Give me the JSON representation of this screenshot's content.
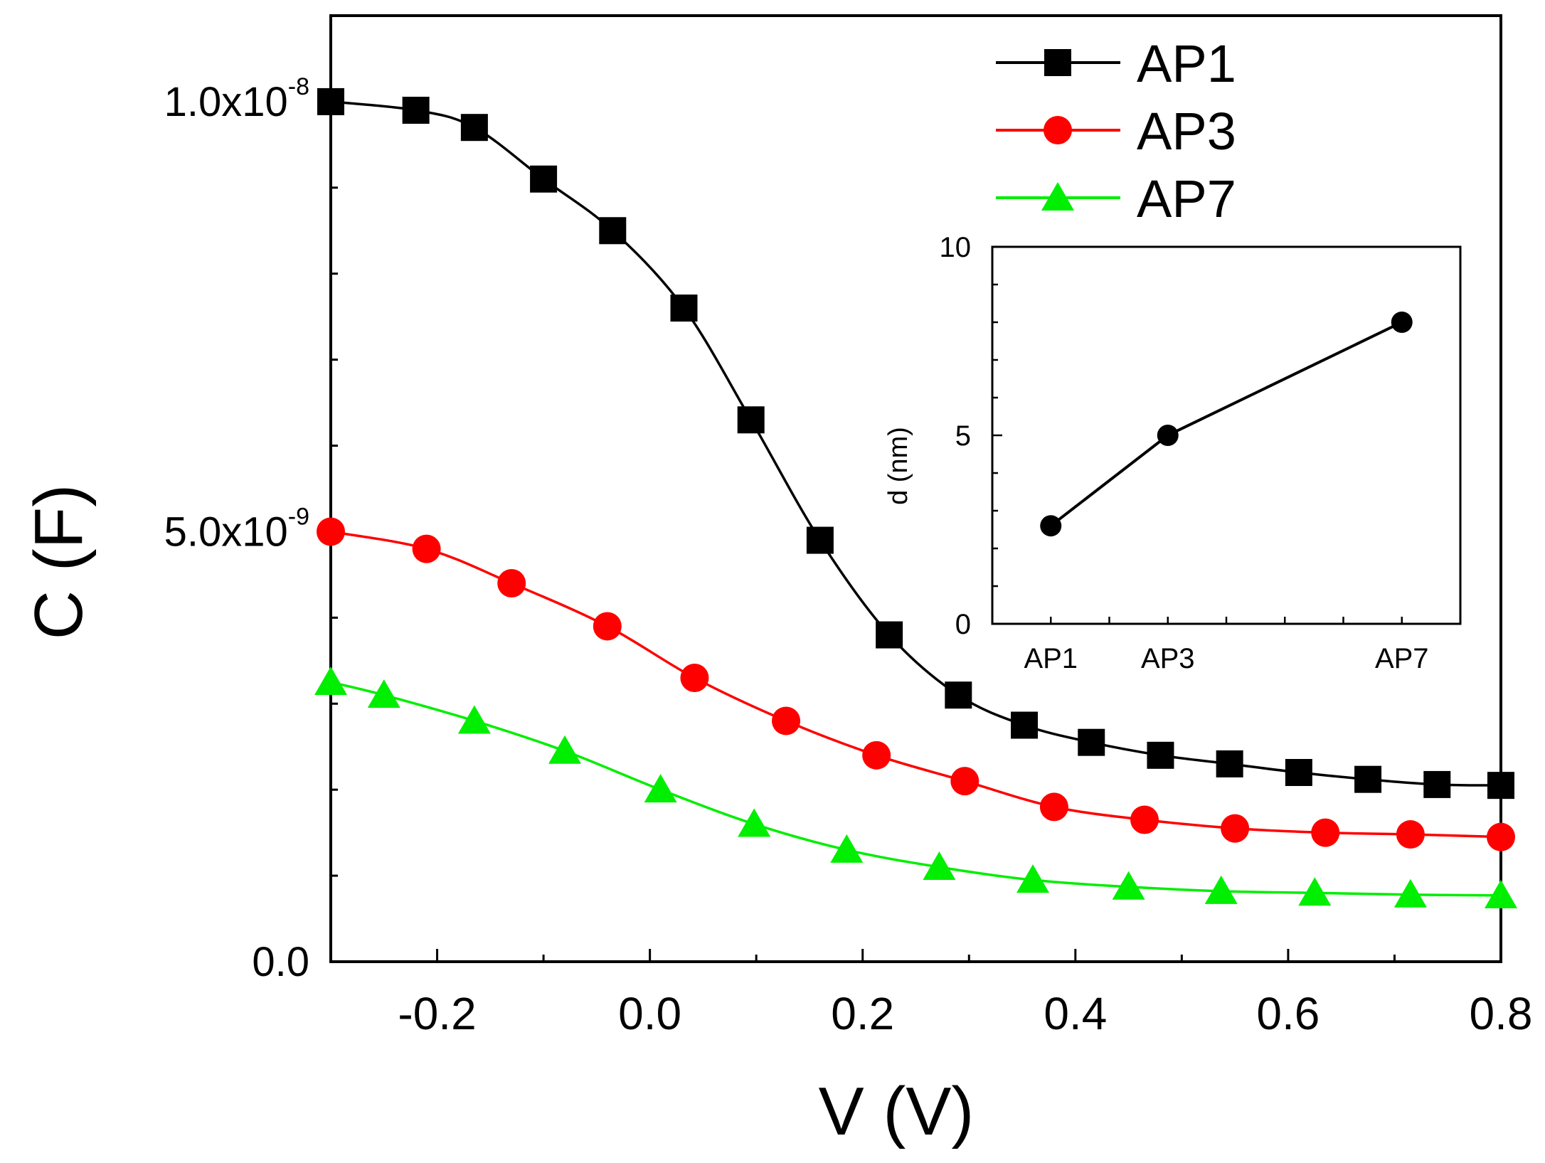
{
  "chart_data": [
    {
      "type": "line",
      "xlabel": "V (V)",
      "ylabel": "C (F)",
      "xlim": [
        -0.3,
        0.8
      ],
      "ylim": [
        0,
        1.1e-08
      ],
      "x_ticks": [
        -0.2,
        0.0,
        0.2,
        0.4,
        0.6,
        0.8
      ],
      "x_tick_labels": [
        "-0.2",
        "0.0",
        "0.2",
        "0.4",
        "0.6",
        "0.8"
      ],
      "y_ticks": [
        0,
        5e-09,
        1e-08
      ],
      "y_tick_labels": [
        {
          "mantissa": "0.0",
          "exponent": ""
        },
        {
          "mantissa": "5.0x10",
          "exponent": "-9"
        },
        {
          "mantissa": "1.0x10",
          "exponent": "-8"
        }
      ],
      "legend_position": "top-right",
      "grid": false,
      "series": [
        {
          "name": "AP1",
          "color": "#000000",
          "marker": "square",
          "x": [
            -0.3,
            -0.22,
            -0.165,
            -0.1,
            -0.035,
            0.032,
            0.095,
            0.16,
            0.225,
            0.29,
            0.352,
            0.415,
            0.48,
            0.545,
            0.61,
            0.675,
            0.74,
            0.8
          ],
          "y": [
            1e-08,
            9.9e-09,
            9.7e-09,
            9.1e-09,
            8.5e-09,
            7.6e-09,
            6.3e-09,
            4.9e-09,
            3.8e-09,
            3.1e-09,
            2.75e-09,
            2.55e-09,
            2.4e-09,
            2.3e-09,
            2.2e-09,
            2.12e-09,
            2.06e-09,
            2.05e-09
          ]
        },
        {
          "name": "AP3",
          "color": "#ff0000",
          "marker": "circle",
          "x": [
            -0.3,
            -0.21,
            -0.13,
            -0.04,
            0.042,
            0.128,
            0.213,
            0.296,
            0.38,
            0.465,
            0.55,
            0.635,
            0.715,
            0.8
          ],
          "y": [
            5e-09,
            4.8e-09,
            4.4e-09,
            3.9e-09,
            3.3e-09,
            2.8e-09,
            2.4e-09,
            2.1e-09,
            1.8e-09,
            1.65e-09,
            1.55e-09,
            1.5e-09,
            1.48e-09,
            1.45e-09
          ]
        },
        {
          "name": "AP7",
          "color": "#00ee00",
          "marker": "triangle",
          "x": [
            -0.3,
            -0.25,
            -0.165,
            -0.08,
            0.01,
            0.098,
            0.185,
            0.272,
            0.36,
            0.45,
            0.537,
            0.625,
            0.715,
            0.8
          ],
          "y": [
            3.25e-09,
            3.1e-09,
            2.8e-09,
            2.45e-09,
            2e-09,
            1.6e-09,
            1.3e-09,
            1.1e-09,
            9.5e-10,
            8.7e-10,
            8.2e-10,
            8e-10,
            7.8e-10,
            7.7e-10
          ]
        }
      ]
    },
    {
      "type": "line",
      "subtype": "inset",
      "xlabel": "",
      "ylabel": "d (nm)",
      "categories": [
        "AP1",
        "AP3",
        "AP7"
      ],
      "category_x": [
        1,
        3,
        7
      ],
      "xlim": [
        0,
        8
      ],
      "ylim": [
        0,
        10
      ],
      "y_ticks": [
        0,
        5,
        10
      ],
      "y_tick_labels": [
        "0",
        "5",
        "10"
      ],
      "grid": false,
      "series": [
        {
          "name": "",
          "color": "#000000",
          "marker": "circle",
          "values": [
            2.6,
            5.0,
            8.0
          ]
        }
      ]
    }
  ]
}
